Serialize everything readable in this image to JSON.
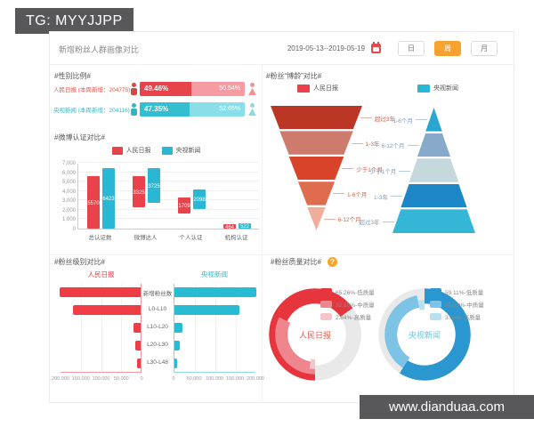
{
  "banners": {
    "tg_label": "TG: MYYJJPP",
    "site_label": "www.dianduaa.com"
  },
  "header": {
    "title": "新增粉丝人群画像对比",
    "date_range": "2019-05-13--2019-05-19",
    "periods": [
      {
        "label": "日",
        "active": false
      },
      {
        "label": "周",
        "active": true
      },
      {
        "label": "月",
        "active": false
      }
    ]
  },
  "colors": {
    "red": "#e8424a",
    "cyan": "#29b7d3",
    "orange": "#f8a12f",
    "banner_gray": "#58585a"
  },
  "chart_data": [
    {
      "id": "gender",
      "type": "bar",
      "title": "#性别比例#",
      "rows": [
        {
          "label": "人民日报 (本周新增：204775)",
          "label_color": "#e8554d",
          "male_pct": 49.46,
          "female_pct": 50.54,
          "male_pct_label": "49.46%",
          "female_pct_label": "50.54%",
          "male_color": "#e8434b",
          "female_color": "#f59ba1",
          "icon_male_color": "#cf4a42",
          "icon_female_color": "#f0948f"
        },
        {
          "label": "央视新闻 (本周新增：204116)",
          "label_color": "#2fb9c9",
          "male_pct": 47.35,
          "female_pct": 52.65,
          "male_pct_label": "47.35%",
          "female_pct_label": "52.65%",
          "male_color": "#33bfcf",
          "female_color": "#8adee7",
          "icon_male_color": "#35b4c6",
          "icon_female_color": "#8ed8e2"
        }
      ]
    },
    {
      "id": "verify",
      "type": "bar",
      "title": "#微博认证对比#",
      "categories": [
        "总认证数",
        "微博达人",
        "个人认证",
        "机构认证"
      ],
      "ylim": [
        0,
        7000
      ],
      "y_ticks": [
        "0",
        "1,000",
        "2,000",
        "3,000",
        "4,000",
        "5,000",
        "6,000",
        "7,000"
      ],
      "series": [
        {
          "name": "人民日报",
          "color": "#e8424a",
          "bars": [
            {
              "value": 5570,
              "from": 0
            },
            {
              "value": 3325,
              "from": 2245
            },
            {
              "value": 1709,
              "from": 1650
            },
            {
              "value": 464,
              "from": 0
            }
          ]
        },
        {
          "name": "央视新闻",
          "color": "#29b7d3",
          "bars": [
            {
              "value": 6423,
              "from": 0
            },
            {
              "value": 3725,
              "from": 2698
            },
            {
              "value": 2098,
              "from": 2100
            },
            {
              "value": 522,
              "from": 0
            }
          ]
        }
      ]
    },
    {
      "id": "age",
      "type": "funnel",
      "title": "#粉丝“博龄”对比#",
      "funnels": [
        {
          "name": "人民日报",
          "legend_color": "#e8424a",
          "shape": "inverted",
          "label_side": "right",
          "label_color": "#cb6752",
          "line_color": "#e6b3a9",
          "slices": [
            {
              "label": "超过3年",
              "color": "#bc3625"
            },
            {
              "label": "1-3年",
              "color": "#cd7b6d"
            },
            {
              "label": "少于1个月",
              "color": "#d8432a"
            },
            {
              "label": "1-6个月",
              "color": "#df6c4f"
            },
            {
              "label": "6-12个月",
              "color": "#f2ac9c"
            }
          ]
        },
        {
          "name": "央视新闻",
          "legend_color": "#29b7d3",
          "shape": "pyramid",
          "label_side": "left",
          "label_color": "#7b9fc0",
          "line_color": "#b4cbdd",
          "slices": [
            {
              "label": "1-6个月",
              "color": "#2aa7cf"
            },
            {
              "label": "6-12个月",
              "color": "#87aacb"
            },
            {
              "label": "少于1个月",
              "color": "#c5d8dc"
            },
            {
              "label": "1-3年",
              "color": "#1d86c6"
            },
            {
              "label": "超过3年",
              "color": "#36b6d6"
            }
          ]
        }
      ]
    },
    {
      "id": "level",
      "type": "tornado",
      "title": "#粉丝级别对比#",
      "categories": [
        "新增粉丝数",
        "L0-L10",
        "L10-L20",
        "L20-L30",
        "L30-L48"
      ],
      "xlim": [
        0,
        200000
      ],
      "left": {
        "name": "人民日报",
        "color": "#f03d45",
        "values": [
          204775,
          166000,
          18000,
          14000,
          9000
        ],
        "ticks": [
          "200,000",
          "150,000",
          "100,000",
          "50,000",
          "0"
        ]
      },
      "right": {
        "name": "央视新闻",
        "color": "#27bcd3",
        "values": [
          204116,
          158000,
          19000,
          12000,
          7000
        ],
        "ticks": [
          "0",
          "50,000",
          "100,000",
          "150,000",
          "200,000"
        ]
      }
    },
    {
      "id": "quality",
      "type": "donut",
      "title": "#粉丝质量对比#",
      "help_icon": "?",
      "donuts": [
        {
          "name": "人民日报",
          "center_color": "#e85a50",
          "arrangement": "concentric",
          "start_deg": 180,
          "slices": [
            {
              "pct": 65.26,
              "label": "65.26%-低质量",
              "color": "#e6353d"
            },
            {
              "pct": 32.1,
              "label": "32.10%-中质量",
              "color": "#ef868d"
            },
            {
              "pct": 2.64,
              "label": "2.64%-高质量",
              "color": "#f5c6c9"
            }
          ]
        },
        {
          "name": "央视新闻",
          "center_color": "#66c5d9",
          "arrangement": "sequential",
          "start_deg": 0,
          "slices": [
            {
              "pct": 59.11,
              "label": "59.11%-低质量",
              "color": "#2b97d0"
            },
            {
              "pct": 37.83,
              "label": "37.83%-中质量",
              "color": "#7cc3e5"
            },
            {
              "pct": 3.06,
              "label": "3.06%-高质量",
              "color": "#b7e1ee"
            }
          ]
        }
      ]
    }
  ]
}
